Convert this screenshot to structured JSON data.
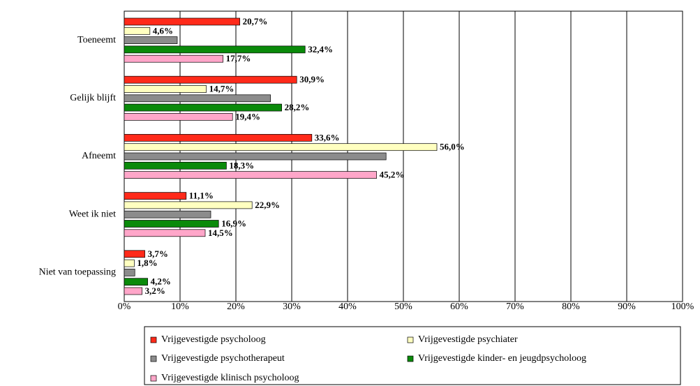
{
  "chart_data": {
    "type": "bar",
    "orientation": "horizontal",
    "categories": [
      "Toeneemt",
      "Gelijk blijft",
      "Afneemt",
      "Weet ik niet",
      "Niet van toepassing"
    ],
    "series": [
      {
        "name": "Vrijgevestigde psycholoog",
        "color": "#ff2a1a",
        "values": [
          20.7,
          30.9,
          33.6,
          11.1,
          3.7
        ],
        "value_labels": [
          "20,7%",
          "30,9%",
          "33,6%",
          "11,1%",
          "3,7%"
        ]
      },
      {
        "name": "Vrijgevestigde psychiater",
        "color": "#ffffc0",
        "values": [
          4.6,
          14.7,
          56.0,
          22.9,
          1.8
        ],
        "value_labels": [
          "4,6%",
          "14,7%",
          "56,0%",
          "22,9%",
          "1,8%"
        ]
      },
      {
        "name": "Vrijgevestigde psychotherapeut",
        "color": "#8c8c8c",
        "values": [
          9.5,
          26.2,
          46.9,
          15.5,
          1.9
        ]
      },
      {
        "name": "Vrijgevestigde kinder- en jeugdpsycholoog",
        "color": "#0a8a0a",
        "values": [
          32.4,
          28.2,
          18.3,
          16.9,
          4.2
        ],
        "value_labels": [
          "32,4%",
          "28,2%",
          "18,3%",
          "16,9%",
          "4,2%"
        ]
      },
      {
        "name": "Vrijgevestigde klinisch psycholoog",
        "color": "#ffa6c9",
        "values": [
          17.7,
          19.4,
          45.2,
          14.5,
          3.2
        ],
        "value_labels": [
          "17,7%",
          "19,4%",
          "45,2%",
          "14,5%",
          "3,2%"
        ]
      }
    ],
    "xlim": [
      0,
      100
    ],
    "xticks": [
      {
        "value": 0,
        "label": "0%"
      },
      {
        "value": 10,
        "label": "10%"
      },
      {
        "value": 20,
        "label": "20%"
      },
      {
        "value": 30,
        "label": "30%"
      },
      {
        "value": 40,
        "label": "40%"
      },
      {
        "value": 50,
        "label": "50%"
      },
      {
        "value": 60,
        "label": "60%"
      },
      {
        "value": 70,
        "label": "70%"
      },
      {
        "value": 80,
        "label": "80%"
      },
      {
        "value": 90,
        "label": "90%"
      },
      {
        "value": 100,
        "label": "100%"
      }
    ],
    "grid": true,
    "legend": "bottom"
  }
}
